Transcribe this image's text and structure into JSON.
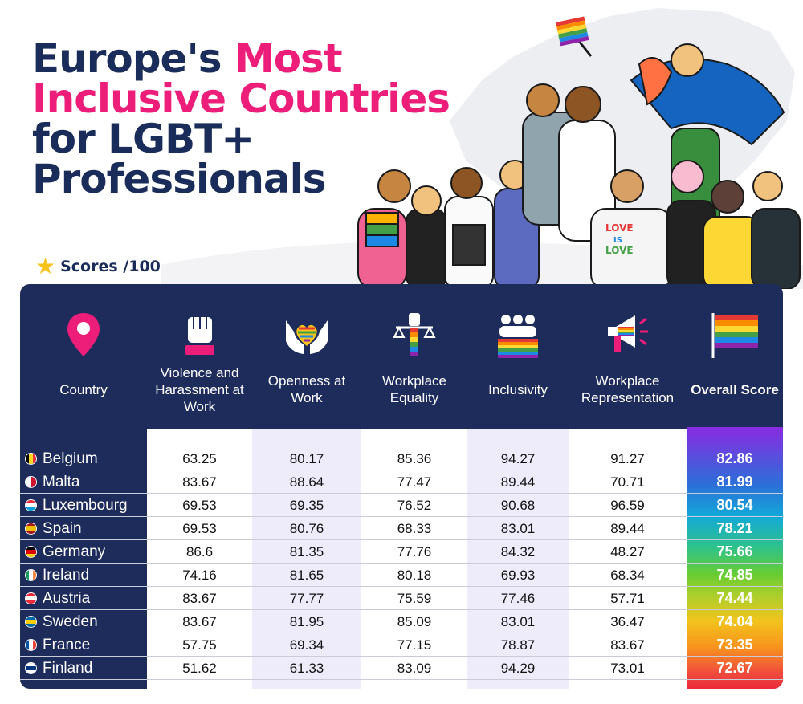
{
  "title": {
    "line1_part1": "Europe's ",
    "line1_part2": "Most",
    "line2": "Inclusive Countries",
    "line3": "for LGBT+",
    "line4": "Professionals"
  },
  "scores_label": "Scores /100",
  "colors": {
    "navy": "#1e2c5c",
    "title_navy": "#1a2d5a",
    "pink": "#ec1e79",
    "lavender": "#eeecfb"
  },
  "chart_data": {
    "type": "table",
    "columns": [
      {
        "key": "country",
        "label": "Country",
        "icon": "location-pin-icon"
      },
      {
        "key": "violence",
        "label": "Violence and Harassment at Work",
        "icon": "raised-fist-icon"
      },
      {
        "key": "openness",
        "label": "Openness at Work",
        "icon": "hands-heart-icon"
      },
      {
        "key": "equality",
        "label": "Workplace Equality",
        "icon": "scales-fist-icon"
      },
      {
        "key": "inclusivity",
        "label": "Inclusivity",
        "icon": "group-people-icon"
      },
      {
        "key": "representation",
        "label": "Workplace Representation",
        "icon": "megaphone-icon"
      },
      {
        "key": "overall",
        "label": "Overall Score",
        "icon": "rainbow-flag-icon"
      }
    ],
    "rows": [
      {
        "country": "Belgium",
        "flag": [
          "#000000",
          "#fdda24",
          "#ef3340"
        ],
        "flag_dir": "v",
        "violence": "63.25",
        "openness": "80.17",
        "equality": "85.36",
        "inclusivity": "94.27",
        "representation": "91.27",
        "overall": "82.86"
      },
      {
        "country": "Malta",
        "flag": [
          "#ffffff",
          "#cf142b"
        ],
        "flag_dir": "v",
        "violence": "83.67",
        "openness": "88.64",
        "equality": "77.47",
        "inclusivity": "89.44",
        "representation": "70.71",
        "overall": "81.99"
      },
      {
        "country": "Luxembourg",
        "flag": [
          "#ed2939",
          "#ffffff",
          "#00a1de"
        ],
        "flag_dir": "h",
        "violence": "69.53",
        "openness": "69.35",
        "equality": "76.52",
        "inclusivity": "90.68",
        "representation": "96.59",
        "overall": "80.54"
      },
      {
        "country": "Spain",
        "flag": [
          "#aa151b",
          "#f1bf00",
          "#f1bf00",
          "#aa151b"
        ],
        "flag_dir": "h",
        "violence": "69.53",
        "openness": "80.76",
        "equality": "68.33",
        "inclusivity": "83.01",
        "representation": "89.44",
        "overall": "78.21"
      },
      {
        "country": "Germany",
        "flag": [
          "#000000",
          "#dd0000",
          "#ffce00"
        ],
        "flag_dir": "h",
        "violence": "86.6",
        "openness": "81.35",
        "equality": "77.76",
        "inclusivity": "84.32",
        "representation": "48.27",
        "overall": "75.66"
      },
      {
        "country": "Ireland",
        "flag": [
          "#169b62",
          "#ffffff",
          "#ff883e"
        ],
        "flag_dir": "v",
        "violence": "74.16",
        "openness": "81.65",
        "equality": "80.18",
        "inclusivity": "69.93",
        "representation": "68.34",
        "overall": "74.85"
      },
      {
        "country": "Austria",
        "flag": [
          "#ed2939",
          "#ffffff",
          "#ed2939"
        ],
        "flag_dir": "h",
        "violence": "83.67",
        "openness": "77.77",
        "equality": "75.59",
        "inclusivity": "77.46",
        "representation": "57.71",
        "overall": "74.44"
      },
      {
        "country": "Sweden",
        "flag": [
          "#006aa7",
          "#fecc00",
          "#006aa7"
        ],
        "flag_dir": "h",
        "violence": "83.67",
        "openness": "81.95",
        "equality": "85.09",
        "inclusivity": "83.01",
        "representation": "36.47",
        "overall": "74.04"
      },
      {
        "country": "France",
        "flag": [
          "#0055a4",
          "#ffffff",
          "#ef4135"
        ],
        "flag_dir": "v",
        "violence": "57.75",
        "openness": "69.34",
        "equality": "77.15",
        "inclusivity": "78.87",
        "representation": "83.67",
        "overall": "73.35"
      },
      {
        "country": "Finland",
        "flag": [
          "#ffffff",
          "#003580",
          "#ffffff"
        ],
        "flag_dir": "h",
        "violence": "51.62",
        "openness": "61.33",
        "equality": "83.09",
        "inclusivity": "94.29",
        "representation": "73.01",
        "overall": "72.67"
      }
    ]
  }
}
